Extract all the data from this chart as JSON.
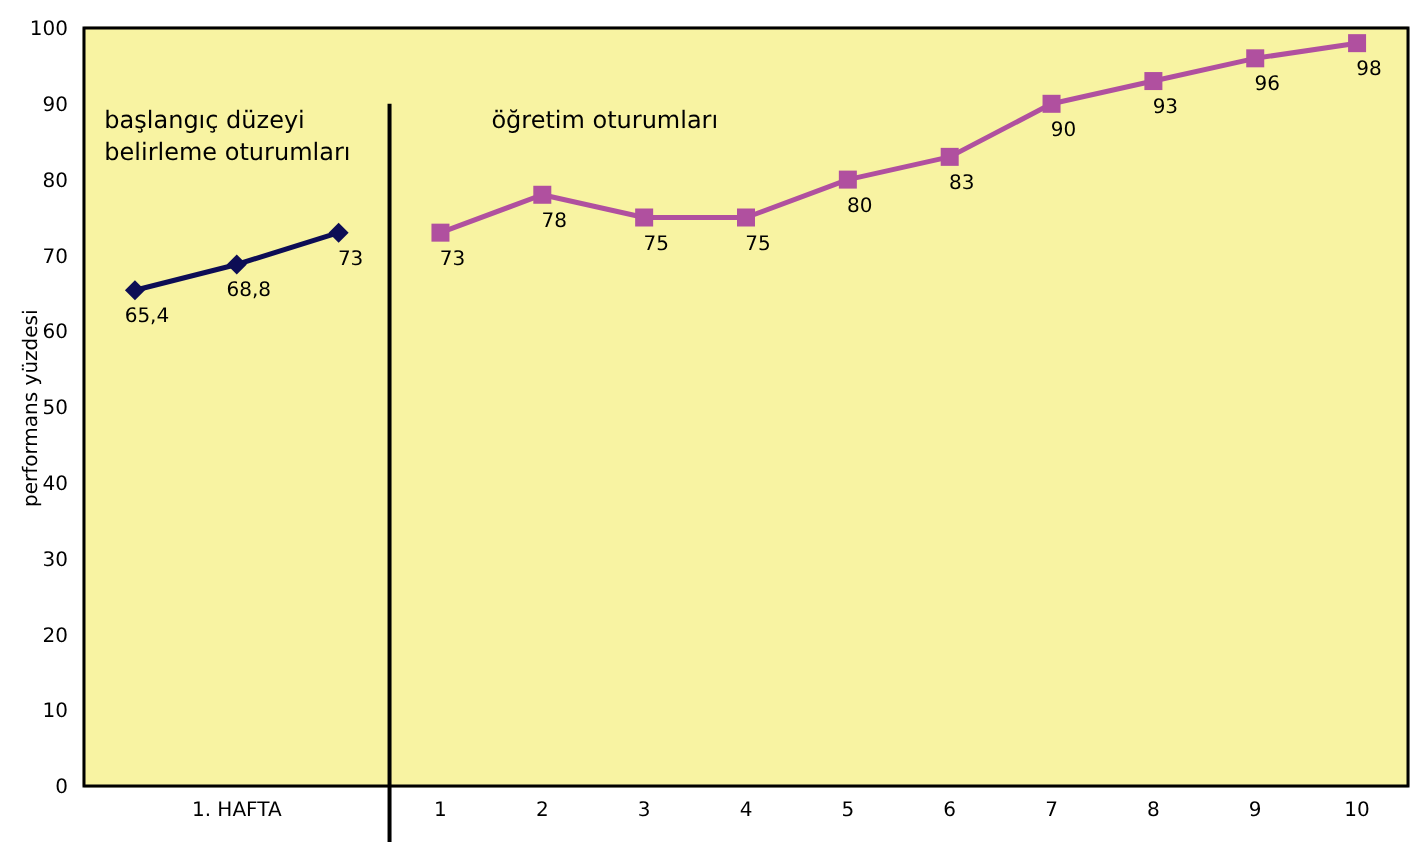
{
  "chart_data": {
    "type": "line",
    "ylabel": "performans yüzdesi",
    "categories": [
      null,
      "1. HAFTA",
      null,
      "1",
      "2",
      "3",
      "4",
      "5",
      "6",
      "7",
      "8",
      "9",
      "10"
    ],
    "series": [
      {
        "color": "#0d0d55",
        "marker": "diamond",
        "values": [
          65.4,
          68.8,
          73,
          null,
          null,
          null,
          null,
          null,
          null,
          null,
          null,
          null,
          null
        ],
        "value_labels": [
          "65,4",
          "68,8",
          "73",
          null,
          null,
          null,
          null,
          null,
          null,
          null,
          null,
          null,
          null
        ]
      },
      {
        "color": "#b0509f",
        "marker": "square",
        "values": [
          null,
          null,
          null,
          73,
          78,
          75,
          75,
          80,
          83,
          90,
          93,
          96,
          98
        ],
        "value_labels": [
          null,
          null,
          null,
          "73",
          "78",
          "75",
          "75",
          "80",
          "83",
          "90",
          "93",
          "96",
          "98"
        ]
      }
    ],
    "ylim": [
      0,
      100
    ],
    "yticks": [
      0,
      10,
      20,
      30,
      40,
      50,
      60,
      70,
      80,
      90,
      100
    ],
    "grid": true,
    "annotations": [
      "başlangıç düzeyi belirleme oturumları",
      "öğretim oturumları"
    ]
  }
}
